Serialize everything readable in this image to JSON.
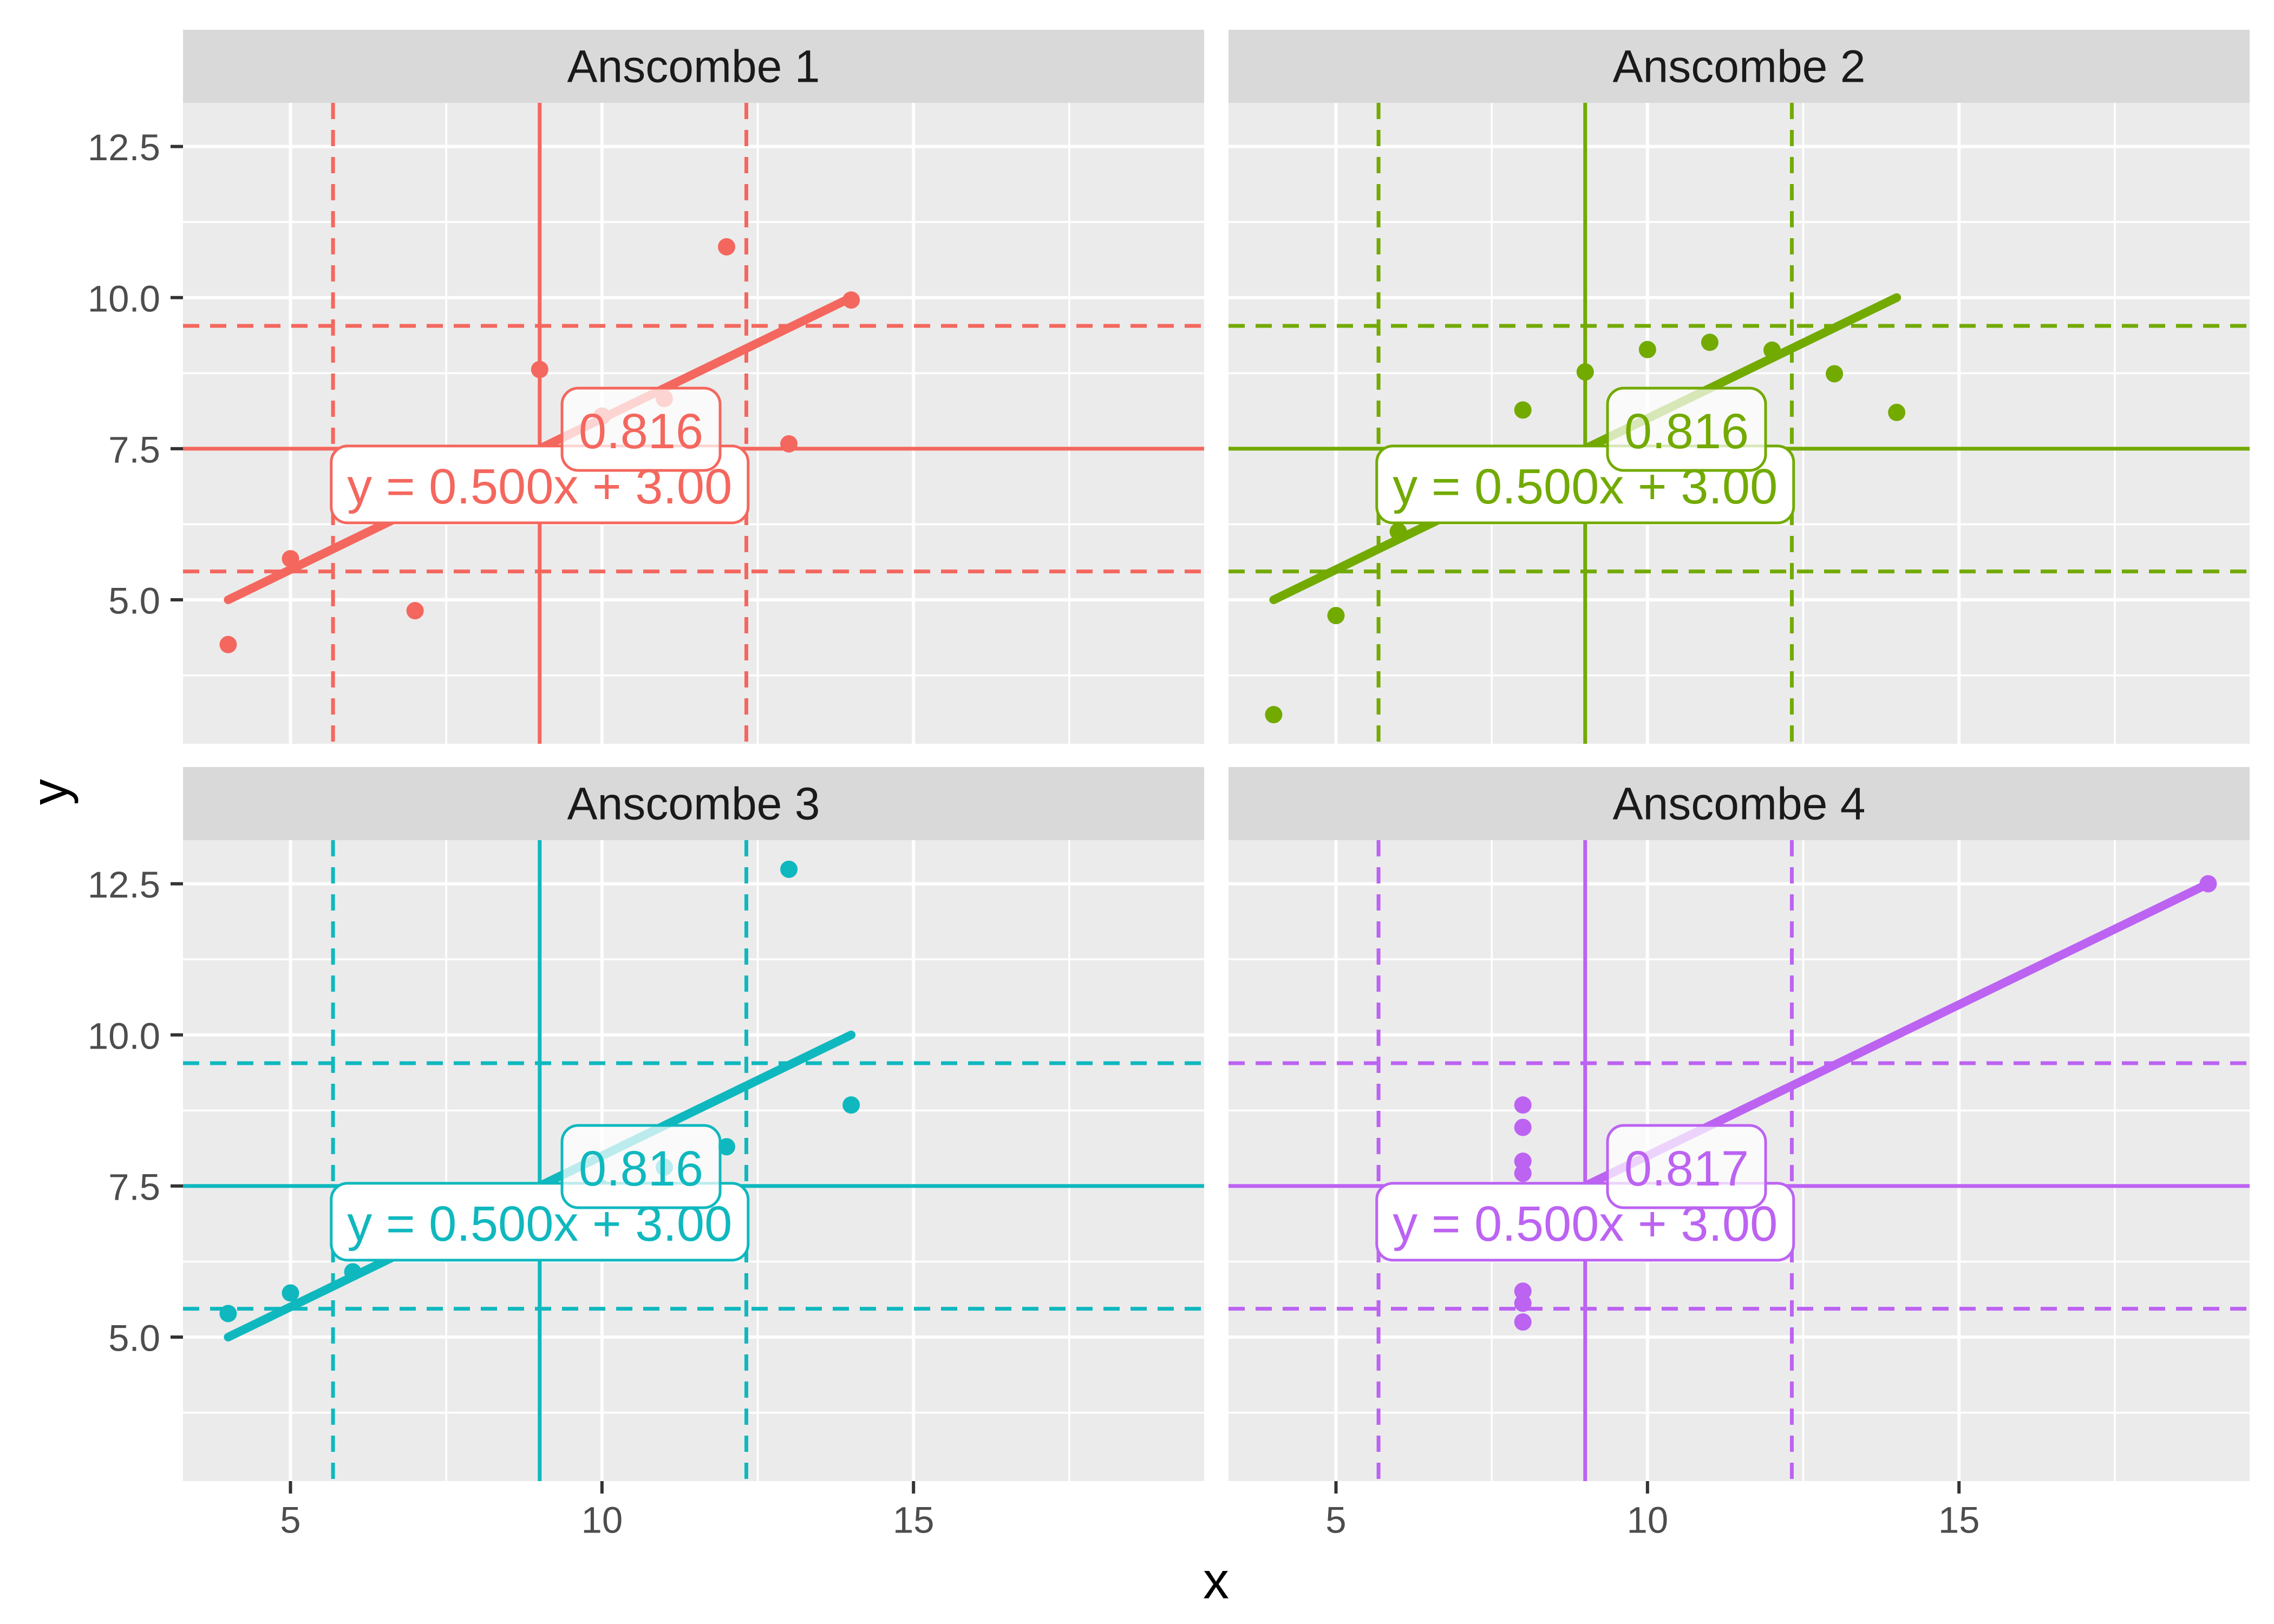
{
  "axes": {
    "x": {
      "title": "x",
      "tick_labels": [
        "5",
        "10",
        "15"
      ],
      "tick_values": [
        5,
        10,
        15
      ],
      "minor_values": [
        7.5,
        12.5,
        17.5
      ],
      "domain": [
        3.275,
        19.665
      ]
    },
    "y": {
      "title": "y",
      "tick_labels": [
        "12.5",
        "10.0",
        "7.5",
        "5.0"
      ],
      "tick_values": [
        12.5,
        10.0,
        7.5,
        5.0
      ],
      "minor_values": [
        3.75,
        6.25,
        8.75,
        11.25
      ],
      "domain": [
        2.618,
        13.222
      ]
    }
  },
  "theme": {
    "page_bg": "#FFFFFF",
    "panel_bg": "#EBEBEB",
    "strip_bg": "#D9D9D9",
    "strip_text_color": "#1A1A1A",
    "grid_color": "#FFFFFF",
    "tick_label_color": "#4D4D4D",
    "tick_mark_color": "#333333",
    "axis_title_color": "#000000",
    "label_box_fill": "#FFFFFF",
    "corr_box_fill_opacity": 0.72
  },
  "stats": {
    "mean_x": 9,
    "mean_y": 7.5,
    "sd_vlines_x": [
      5.683,
      12.317
    ],
    "sd_hlines_y": [
      5.469,
      9.532
    ]
  },
  "chart_data": {
    "type": "scatter",
    "xlabel": "x",
    "ylabel": "y",
    "grid": "on",
    "legend_position": "none",
    "x_ticks": [
      5,
      10,
      15
    ],
    "y_ticks": [
      5.0,
      7.5,
      10.0,
      12.5
    ],
    "xlim": [
      3.275,
      19.665
    ],
    "ylim": [
      2.618,
      13.222
    ],
    "regression": {
      "slope": 0.5,
      "intercept": 3.0
    },
    "facets": [
      {
        "title": "Anscombe 1",
        "color": "#F4675E",
        "correlation_label": "0.816",
        "equation_label": "y = 0.500x + 3.00",
        "regression_x_range": [
          4,
          14
        ],
        "points": [
          [
            10,
            8.04
          ],
          [
            8,
            6.95
          ],
          [
            13,
            7.58
          ],
          [
            9,
            8.81
          ],
          [
            11,
            8.33
          ],
          [
            14,
            9.96
          ],
          [
            6,
            7.24
          ],
          [
            4,
            4.26
          ],
          [
            12,
            10.84
          ],
          [
            7,
            4.82
          ],
          [
            5,
            5.68
          ]
        ]
      },
      {
        "title": "Anscombe 2",
        "color": "#72AA00",
        "correlation_label": "0.816",
        "equation_label": "y = 0.500x + 3.00",
        "regression_x_range": [
          4,
          14
        ],
        "points": [
          [
            10,
            9.14
          ],
          [
            8,
            8.14
          ],
          [
            13,
            8.74
          ],
          [
            9,
            8.77
          ],
          [
            11,
            9.26
          ],
          [
            14,
            8.1
          ],
          [
            6,
            6.13
          ],
          [
            4,
            3.1
          ],
          [
            12,
            9.13
          ],
          [
            7,
            7.26
          ],
          [
            5,
            4.74
          ]
        ]
      },
      {
        "title": "Anscombe 3",
        "color": "#0FB8BE",
        "correlation_label": "0.816",
        "equation_label": "y = 0.500x + 3.00",
        "regression_x_range": [
          4,
          14
        ],
        "points": [
          [
            10,
            7.46
          ],
          [
            8,
            6.77
          ],
          [
            13,
            12.74
          ],
          [
            9,
            7.11
          ],
          [
            11,
            7.81
          ],
          [
            14,
            8.84
          ],
          [
            6,
            6.08
          ],
          [
            4,
            5.39
          ],
          [
            12,
            8.15
          ],
          [
            7,
            6.42
          ],
          [
            5,
            5.73
          ]
        ]
      },
      {
        "title": "Anscombe 4",
        "color": "#BC63F2",
        "correlation_label": "0.817",
        "equation_label": "y = 0.500x + 3.00",
        "regression_x_range": [
          8,
          19
        ],
        "points": [
          [
            8,
            6.58
          ],
          [
            8,
            5.76
          ],
          [
            8,
            7.71
          ],
          [
            8,
            8.84
          ],
          [
            8,
            8.47
          ],
          [
            8,
            7.04
          ],
          [
            8,
            5.25
          ],
          [
            19,
            12.5
          ],
          [
            8,
            5.56
          ],
          [
            8,
            7.91
          ],
          [
            8,
            6.89
          ]
        ]
      }
    ]
  }
}
